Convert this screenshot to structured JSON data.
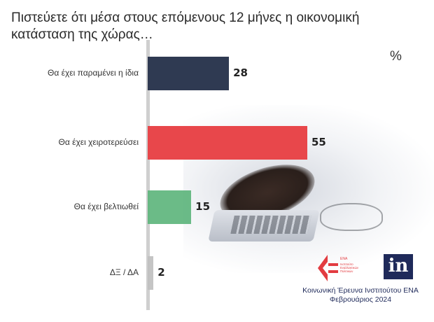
{
  "title": "Πιστεύετε ότι μέσα στους επόμενους 12 μήνες η οικονομική κατάσταση της χώρας…",
  "unit_label": "%",
  "chart_data": {
    "type": "bar",
    "orientation": "horizontal",
    "categories": [
      "Θα έχει παραμένει η ίδια",
      "Θα έχει χειροτερεύσει",
      "Θα έχει βελτιωθεί",
      "ΔΞ / ΔΑ"
    ],
    "values": [
      28,
      55,
      15,
      2
    ],
    "value_labels": [
      "28",
      "55",
      "15",
      "2"
    ],
    "colors": [
      "#2f3a52",
      "#e8474b",
      "#5bb47a",
      "#bfbfbf"
    ],
    "xlim": [
      0,
      60
    ],
    "grid": false,
    "legend": "none"
  },
  "logos": {
    "ena_lines": [
      "ΕΝΑ",
      "Ινστιτούτο",
      "Εναλλακτικών",
      "Πολιτικών"
    ],
    "in_text": "in"
  },
  "source": {
    "line1": "Κοινωνική Έρευνα Ινστιτούτου ΕΝΑ",
    "line2": "Φεβρουάριος 2024"
  }
}
